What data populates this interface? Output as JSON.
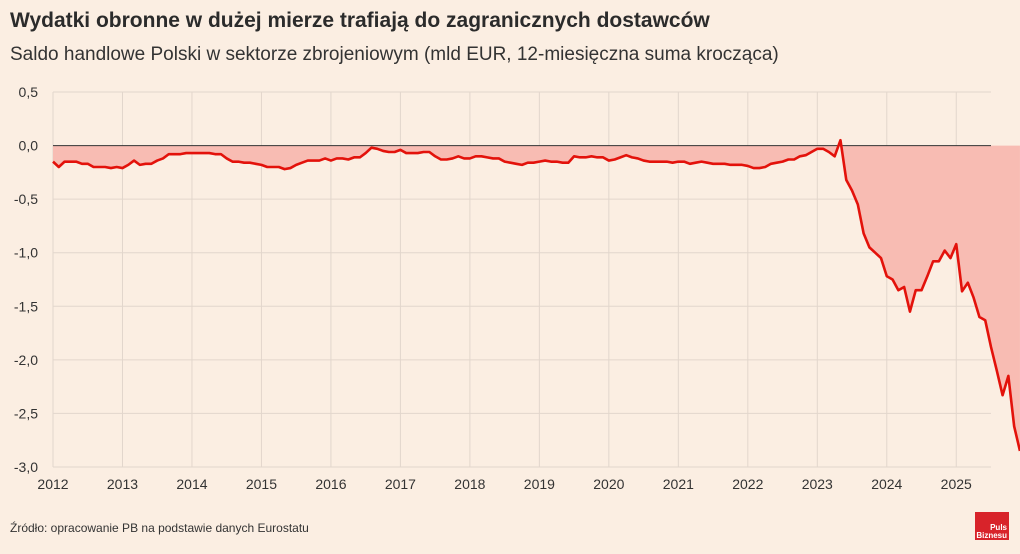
{
  "chart_data": {
    "type": "area",
    "title": "Wydatki obronne w dużej mierze trafiają do zagranicznych dostawców",
    "subtitle": "Saldo handlowe Polski w sektorze zbrojeniowym (mld EUR, 12-miesięczna suma krocząca)",
    "xlabel": "",
    "ylabel": "",
    "x_start": 2012.0,
    "x_step_months": 1,
    "xlim": [
      2012.0,
      2025.5
    ],
    "ylim": [
      -3.0,
      0.5
    ],
    "y_ticks": [
      0.5,
      0.0,
      -0.5,
      -1.0,
      -1.5,
      -2.0,
      -2.5,
      -3.0
    ],
    "y_tick_labels": [
      "0,5",
      "0,0",
      "-0,5",
      "-1,0",
      "-1,5",
      "-2,0",
      "-2,5",
      "-3,0"
    ],
    "x_ticks": [
      2012,
      2013,
      2014,
      2015,
      2016,
      2017,
      2018,
      2019,
      2020,
      2021,
      2022,
      2023,
      2024,
      2025
    ],
    "x_tick_labels": [
      "2012",
      "2013",
      "2014",
      "2015",
      "2016",
      "2017",
      "2018",
      "2019",
      "2020",
      "2021",
      "2022",
      "2023",
      "2024",
      "2025"
    ],
    "grid": true,
    "line_color": "#e3120b",
    "fill_color": "#f8bcb3",
    "zero_line_color": "#333333",
    "values": [
      -0.15,
      -0.2,
      -0.15,
      -0.15,
      -0.15,
      -0.17,
      -0.17,
      -0.2,
      -0.2,
      -0.2,
      -0.21,
      -0.2,
      -0.21,
      -0.18,
      -0.14,
      -0.18,
      -0.17,
      -0.17,
      -0.14,
      -0.12,
      -0.08,
      -0.08,
      -0.08,
      -0.07,
      -0.07,
      -0.07,
      -0.07,
      -0.07,
      -0.08,
      -0.08,
      -0.12,
      -0.15,
      -0.15,
      -0.16,
      -0.16,
      -0.17,
      -0.18,
      -0.2,
      -0.2,
      -0.2,
      -0.22,
      -0.21,
      -0.18,
      -0.16,
      -0.14,
      -0.14,
      -0.14,
      -0.12,
      -0.14,
      -0.12,
      -0.12,
      -0.13,
      -0.11,
      -0.11,
      -0.07,
      -0.02,
      -0.03,
      -0.05,
      -0.06,
      -0.06,
      -0.04,
      -0.07,
      -0.07,
      -0.07,
      -0.06,
      -0.06,
      -0.1,
      -0.13,
      -0.13,
      -0.12,
      -0.1,
      -0.12,
      -0.12,
      -0.1,
      -0.1,
      -0.11,
      -0.12,
      -0.12,
      -0.15,
      -0.16,
      -0.17,
      -0.18,
      -0.16,
      -0.16,
      -0.15,
      -0.14,
      -0.15,
      -0.15,
      -0.16,
      -0.16,
      -0.1,
      -0.11,
      -0.11,
      -0.1,
      -0.11,
      -0.11,
      -0.14,
      -0.13,
      -0.11,
      -0.09,
      -0.11,
      -0.12,
      -0.14,
      -0.15,
      -0.15,
      -0.15,
      -0.15,
      -0.16,
      -0.15,
      -0.15,
      -0.17,
      -0.16,
      -0.15,
      -0.16,
      -0.17,
      -0.17,
      -0.17,
      -0.18,
      -0.18,
      -0.18,
      -0.19,
      -0.21,
      -0.21,
      -0.2,
      -0.17,
      -0.16,
      -0.15,
      -0.13,
      -0.13,
      -0.1,
      -0.09,
      -0.06,
      -0.03,
      -0.03,
      -0.06,
      -0.1,
      0.05,
      -0.32,
      -0.42,
      -0.55,
      -0.82,
      -0.95,
      -1.0,
      -1.05,
      -1.22,
      -1.25,
      -1.35,
      -1.32,
      -1.55,
      -1.35,
      -1.35,
      -1.22,
      -1.08,
      -1.08,
      -0.98,
      -1.05,
      -0.92,
      -1.36,
      -1.28,
      -1.42,
      -1.6,
      -1.63,
      -1.88,
      -2.1,
      -2.33,
      -2.15,
      -2.62,
      -2.85
    ]
  },
  "source": "Źródło: opracowanie PB na podstawie danych Eurostatu",
  "logo": {
    "line1": "Puls",
    "line2": "Biznesu"
  }
}
